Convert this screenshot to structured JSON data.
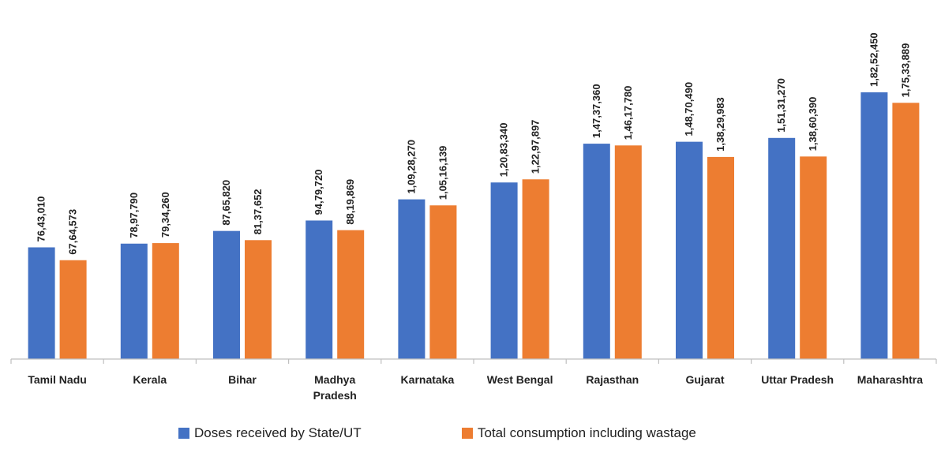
{
  "chart_data": {
    "type": "bar",
    "title": "",
    "xlabel": "",
    "ylabel": "",
    "ylim": [
      0,
      20000000
    ],
    "grid": false,
    "legend_position": "bottom",
    "categories": [
      [
        "Tamil Nadu"
      ],
      [
        "Kerala"
      ],
      [
        "Bihar"
      ],
      [
        "Madhya",
        "Pradesh"
      ],
      [
        "Karnataka"
      ],
      [
        "West Bengal"
      ],
      [
        "Rajasthan"
      ],
      [
        "Gujarat"
      ],
      [
        "Uttar Pradesh"
      ],
      [
        "Maharashtra"
      ]
    ],
    "series": [
      {
        "name": "Doses received by State/UT",
        "color": "#4472C4",
        "values": [
          7643010,
          7897790,
          8765820,
          9479720,
          10928270,
          12083340,
          14737360,
          14870490,
          15131270,
          18252450
        ],
        "labels": [
          "76,43,010",
          "78,97,790",
          "87,65,820",
          "94,79,720",
          "1,09,28,270",
          "1,20,83,340",
          "1,47,37,360",
          "1,48,70,490",
          "1,51,31,270",
          "1,82,52,450"
        ]
      },
      {
        "name": "Total consumption including wastage",
        "color": "#ED7D31",
        "values": [
          6764573,
          7934260,
          8137652,
          8819869,
          10516139,
          12297897,
          14617780,
          13829983,
          13860390,
          17533889
        ],
        "labels": [
          "67,64,573",
          "79,34,260",
          "81,37,652",
          "88,19,869",
          "1,05,16,139",
          "1,22,97,897",
          "1,46,17,780",
          "1,38,29,983",
          "1,38,60,390",
          "1,75,33,889"
        ]
      }
    ]
  }
}
